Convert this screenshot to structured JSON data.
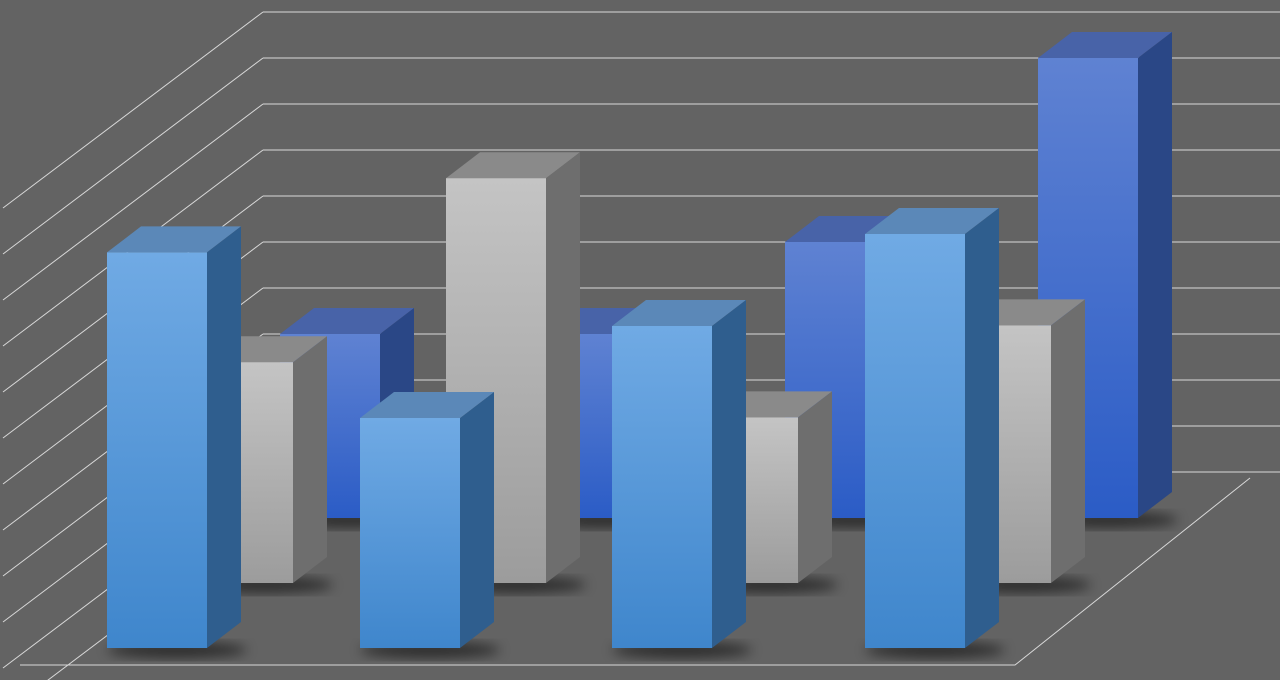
{
  "chart_data": {
    "type": "bar",
    "style": "3d-clustered-depth",
    "title": "",
    "xlabel": "",
    "ylabel": "",
    "categories": [
      "",
      "",
      "",
      ""
    ],
    "ylim": [
      0,
      11
    ],
    "grid": true,
    "legend": "none",
    "series": [
      {
        "values": [
          4.0,
          4.0,
          6.0,
          10.0
        ],
        "color": "#3a63c8",
        "row": "back"
      },
      {
        "values": [
          4.8,
          8.8,
          3.6,
          5.6
        ],
        "color": "#b4b4b4",
        "row": "middle"
      },
      {
        "values": [
          8.6,
          5.0,
          7.0,
          9.0
        ],
        "color": "#5a9ad8",
        "row": "front"
      }
    ],
    "background_color": "#636363",
    "grid_color": "#d8d8d8"
  }
}
